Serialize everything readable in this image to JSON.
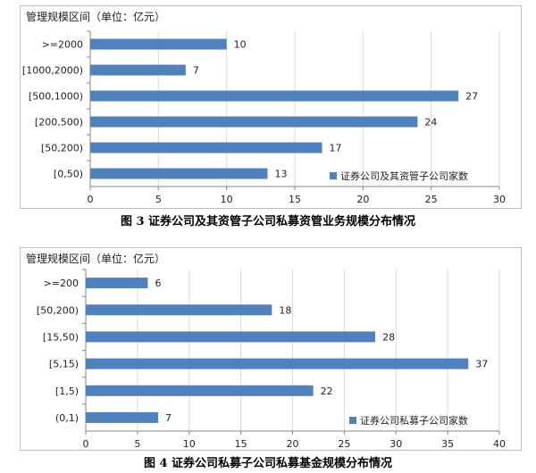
{
  "chart_data": [
    {
      "type": "bar",
      "orientation": "horizontal",
      "title": "管理规模区间（单位：亿元）",
      "categories": [
        ">=2000",
        "[1000,2000)",
        "[500,1000)",
        "[200,500)",
        "[50,200)",
        "[0,50)"
      ],
      "series": [
        {
          "name": "证券公司及其资管子公司家数",
          "values": [
            10,
            7,
            27,
            24,
            17,
            13
          ],
          "color": "#4f81bd"
        }
      ],
      "xlim": [
        0,
        30
      ],
      "xticks": [
        0,
        5,
        10,
        15,
        20,
        25,
        30
      ],
      "grid": true,
      "legend": "bottom-right",
      "caption": "图 3   证券公司及其资管子公司私募资管业务规模分布情况"
    },
    {
      "type": "bar",
      "orientation": "horizontal",
      "title": "管理规模区间（单位：亿元）",
      "categories": [
        ">=200",
        "[50,200)",
        "[15,50)",
        "[5,15)",
        "[1,5)",
        "(0,1)"
      ],
      "series": [
        {
          "name": "证券公司私募子公司家数",
          "values": [
            6,
            18,
            28,
            37,
            22,
            7
          ],
          "color": "#4f81bd"
        }
      ],
      "xlim": [
        0,
        40
      ],
      "xticks": [
        0,
        5,
        10,
        15,
        20,
        25,
        30,
        35,
        40
      ],
      "grid": true,
      "legend": "bottom-right",
      "caption": "图 4   证券公司私募子公司私募基金规模分布情况"
    }
  ]
}
